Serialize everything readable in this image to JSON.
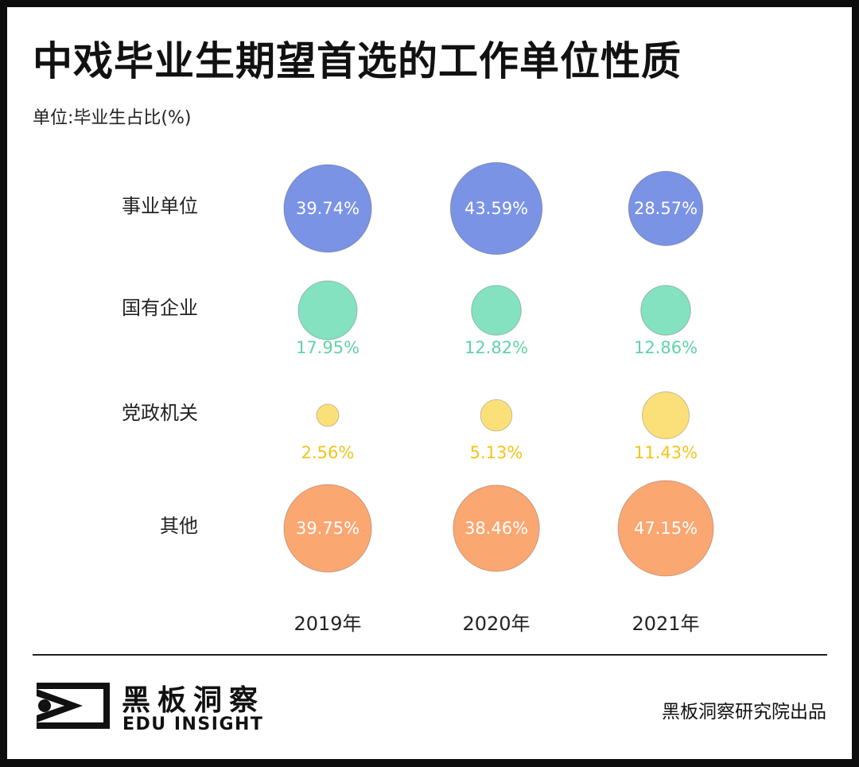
{
  "chart_data": {
    "type": "bubble-matrix",
    "title": "中戏毕业生期望首选的工作单位性质",
    "unit_label": "单位:毕业生占比(%)",
    "categories": [
      "事业单位",
      "国有企业",
      "党政机关",
      "其他"
    ],
    "years": [
      "2019年",
      "2020年",
      "2021年"
    ],
    "series": [
      {
        "name": "事业单位",
        "color": "#7b93e5",
        "values": [
          39.74,
          43.59,
          28.57
        ],
        "labels": [
          "39.74%",
          "43.59%",
          "28.57%"
        ]
      },
      {
        "name": "国有企业",
        "color": "#84e2c0",
        "values": [
          17.95,
          12.82,
          12.86
        ],
        "labels": [
          "17.95%",
          "12.82%",
          "12.86%"
        ]
      },
      {
        "name": "党政机关",
        "color": "#fbe07a",
        "values": [
          2.56,
          5.13,
          11.43
        ],
        "labels": [
          "2.56%",
          "5.13%",
          "11.43%"
        ]
      },
      {
        "name": "其他",
        "color": "#fba772",
        "values": [
          39.75,
          38.46,
          47.15
        ],
        "labels": [
          "39.75%",
          "38.46%",
          "47.15%"
        ]
      }
    ],
    "label_colors": {
      "on_bubble": "#ffffff",
      "国有企业": "#5fd3a8",
      "党政机关": "#f3c419"
    }
  },
  "footer": {
    "brand_cn": "黑板洞察",
    "brand_en": "EDU INSIGHT",
    "source": "黑板洞察研究院出品"
  }
}
